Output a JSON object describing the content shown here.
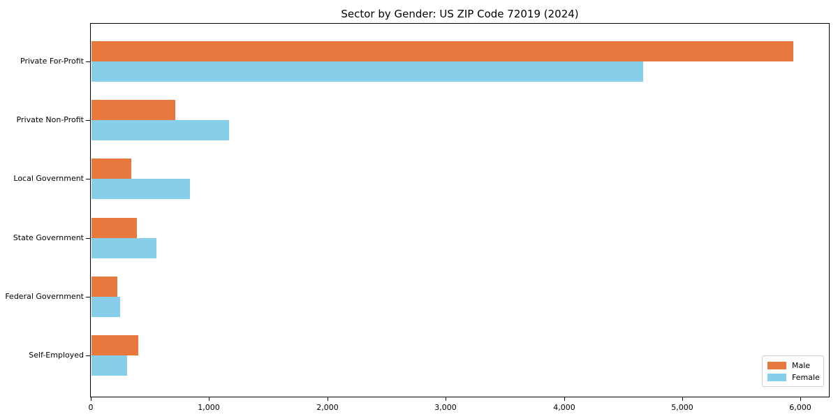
{
  "window": {
    "background_color": "#ffffff",
    "text_color": "#000000",
    "axis_color": "#000000"
  },
  "chart_data": {
    "type": "bar",
    "orientation": "horizontal",
    "title": "Sector by Gender: US ZIP Code 72019 (2024)",
    "categories": [
      "Private For-Profit",
      "Private Non-Profit",
      "Local Government",
      "State Government",
      "Federal Government",
      "Self-Employed"
    ],
    "series": [
      {
        "name": "Male",
        "color": "#e8793e",
        "values": [
          5935,
          710,
          335,
          385,
          220,
          395
        ]
      },
      {
        "name": "Female",
        "color": "#87ceeb",
        "values": [
          4665,
          1165,
          830,
          550,
          240,
          300
        ]
      }
    ],
    "xlabel": "",
    "ylabel": "",
    "xlim": [
      0,
      6240
    ],
    "x_tick_values": [
      0,
      1000,
      2000,
      3000,
      4000,
      5000,
      6000
    ],
    "x_tick_labels": [
      "0",
      "1,000",
      "2,000",
      "3,000",
      "4,000",
      "5,000",
      "6,000"
    ],
    "grid": false,
    "legend": {
      "position": "lower-right",
      "border_color": "#cccccc",
      "background_color": "#ffffff"
    }
  }
}
